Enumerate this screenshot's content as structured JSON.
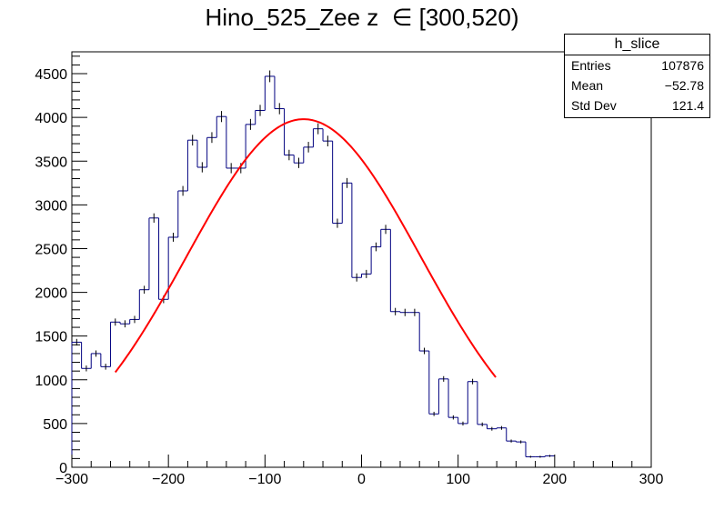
{
  "chart_data": {
    "type": "histogram",
    "title": "Hino_525_Zee z  ∈ [300,520)",
    "xlabel": "",
    "ylabel": "",
    "xlim": [
      -300,
      300
    ],
    "ylim": [
      0,
      4750
    ],
    "x_ticks": [
      -300,
      -200,
      -100,
      0,
      100,
      200,
      300
    ],
    "x_tick_labels": [
      "−300",
      "−200",
      "−100",
      "0",
      "100",
      "200",
      "300"
    ],
    "y_ticks": [
      0,
      500,
      1000,
      1500,
      2000,
      2500,
      3000,
      3500,
      4000,
      4500
    ],
    "y_tick_labels": [
      "0",
      "500",
      "1000",
      "1500",
      "2000",
      "2500",
      "3000",
      "3500",
      "4000",
      "4500"
    ],
    "bin_width": 10,
    "bin_edges_start": -300,
    "values": [
      1430,
      1130,
      1300,
      1150,
      1660,
      1640,
      1690,
      2030,
      2850,
      1920,
      2630,
      3160,
      3740,
      3430,
      3770,
      4010,
      3420,
      3420,
      3920,
      4080,
      4470,
      4100,
      3570,
      3480,
      3660,
      3870,
      3730,
      2790,
      3250,
      2170,
      2210,
      2520,
      2720,
      1780,
      1770,
      1770,
      1330,
      610,
      1010,
      570,
      500,
      980,
      490,
      440,
      450,
      300,
      290,
      120,
      120,
      130
    ],
    "fit": {
      "name": "gaussian fit",
      "color": "#ff0000",
      "amplitude": 3980,
      "mean": -60,
      "sigma": 121,
      "x_range": [
        -255,
        140
      ]
    },
    "line_color": "#000080",
    "stats_box": {
      "name": "h_slice",
      "rows": [
        {
          "label": "Entries",
          "value": "107876"
        },
        {
          "label": "Mean",
          "value": "−52.78"
        },
        {
          "label": "Std Dev",
          "value": "121.4"
        }
      ]
    }
  }
}
